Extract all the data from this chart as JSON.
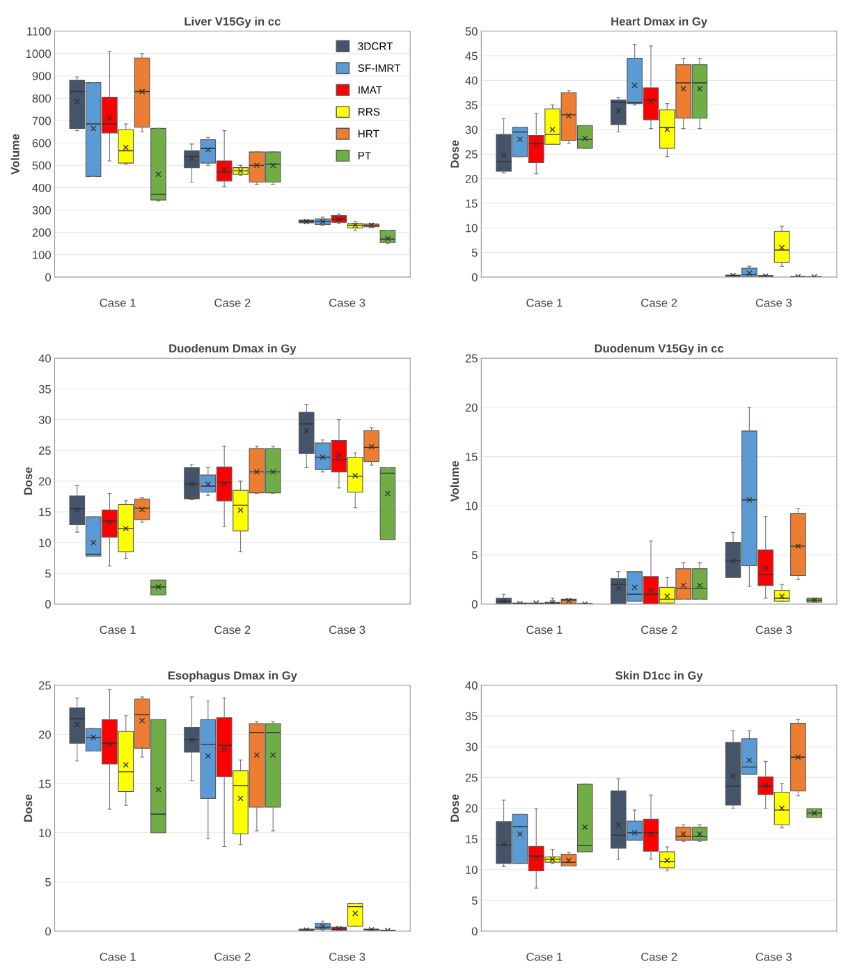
{
  "chart_data": [
    {
      "type": "box",
      "title": "Liver V15Gy in cc",
      "ylabel": "Volume",
      "categories": [
        "Case 1",
        "Case 2",
        "Case 3"
      ],
      "ylim": [
        0,
        1100
      ],
      "yticks": [
        0,
        100,
        200,
        300,
        400,
        500,
        600,
        700,
        800,
        900,
        1000,
        1100
      ],
      "grid": "y",
      "legend": "top right",
      "marker": "cross",
      "series": [
        {
          "name": "3DCRT",
          "color": "#44546a",
          "boxes": [
            {
              "low": 655,
              "q1": 665,
              "median": 830,
              "q3": 880,
              "high": 895,
              "mean": 785
            },
            {
              "low": 425,
              "q1": 490,
              "median": 540,
              "q3": 565,
              "high": 595,
              "mean": 530
            },
            {
              "low": 243,
              "q1": 243,
              "median": 248,
              "q3": 255,
              "high": 255,
              "mean": 248
            }
          ]
        },
        {
          "name": "SF-IMRT",
          "color": "#5b9bd5",
          "boxes": [
            {
              "low": 450,
              "q1": 450,
              "median": 685,
              "q3": 870,
              "high": 870,
              "mean": 665
            },
            {
              "low": 500,
              "q1": 510,
              "median": 575,
              "q3": 615,
              "high": 625,
              "mean": 570
            },
            {
              "low": 232,
              "q1": 235,
              "median": 248,
              "q3": 260,
              "high": 268,
              "mean": 248
            }
          ]
        },
        {
          "name": "IMAT",
          "color": "#ff0000",
          "boxes": [
            {
              "low": 520,
              "q1": 645,
              "median": 685,
              "q3": 805,
              "high": 1010,
              "mean": 710
            },
            {
              "low": 405,
              "q1": 430,
              "median": 470,
              "q3": 520,
              "high": 655,
              "mean": 480
            },
            {
              "low": 240,
              "q1": 245,
              "median": 258,
              "q3": 275,
              "high": 282,
              "mean": 258
            }
          ]
        },
        {
          "name": "RRS",
          "color": "#ffff00",
          "boxes": [
            {
              "low": 505,
              "q1": 510,
              "median": 565,
              "q3": 660,
              "high": 685,
              "mean": 580
            },
            {
              "low": 455,
              "q1": 460,
              "median": 475,
              "q3": 490,
              "high": 500,
              "mean": 475
            },
            {
              "low": 210,
              "q1": 220,
              "median": 232,
              "q3": 240,
              "high": 248,
              "mean": 232
            }
          ]
        },
        {
          "name": "HRT",
          "color": "#ed7d31",
          "boxes": [
            {
              "low": 650,
              "q1": 670,
              "median": 830,
              "q3": 980,
              "high": 1000,
              "mean": 830
            },
            {
              "low": 415,
              "q1": 425,
              "median": 500,
              "q3": 560,
              "high": 560,
              "mean": 500
            },
            {
              "low": 222,
              "q1": 225,
              "median": 232,
              "q3": 238,
              "high": 240,
              "mean": 232
            }
          ]
        },
        {
          "name": "PT",
          "color": "#70ad47",
          "boxes": [
            {
              "low": 340,
              "q1": 345,
              "median": 370,
              "q3": 665,
              "high": 665,
              "mean": 460
            },
            {
              "low": 415,
              "q1": 425,
              "median": 505,
              "q3": 560,
              "high": 560,
              "mean": 500
            },
            {
              "low": 150,
              "q1": 155,
              "median": 170,
              "q3": 210,
              "high": 210,
              "mean": 172
            }
          ]
        }
      ]
    },
    {
      "type": "box",
      "title": "Heart Dmax in Gy",
      "ylabel": "Dose",
      "categories": [
        "Case 1",
        "Case 2",
        "Case 3"
      ],
      "ylim": [
        0,
        50
      ],
      "yticks": [
        0,
        5,
        10,
        15,
        20,
        25,
        30,
        35,
        40,
        45,
        50
      ],
      "grid": "y",
      "marker": "cross",
      "series": [
        {
          "color": "#44546a",
          "boxes": [
            {
              "low": 21.2,
              "q1": 21.5,
              "median": 23.5,
              "q3": 29,
              "high": 32.2,
              "mean": 24.8
            },
            {
              "low": 29.5,
              "q1": 31,
              "median": 35.5,
              "q3": 36,
              "high": 36.5,
              "mean": 33.8
            },
            {
              "low": 0.1,
              "q1": 0.2,
              "median": 0.3,
              "q3": 0.4,
              "high": 0.5,
              "mean": 0.3
            }
          ]
        },
        {
          "color": "#5b9bd5",
          "boxes": [
            {
              "low": 24.5,
              "q1": 24.5,
              "median": 29.5,
              "q3": 30.5,
              "high": 30.5,
              "mean": 28
            },
            {
              "low": 35,
              "q1": 35.3,
              "median": 35.5,
              "q3": 44.5,
              "high": 47.3,
              "mean": 39
            },
            {
              "low": 0.1,
              "q1": 0.2,
              "median": 0.5,
              "q3": 1.8,
              "high": 2.2,
              "mean": 0.8
            }
          ]
        },
        {
          "color": "#ff0000",
          "boxes": [
            {
              "low": 21,
              "q1": 23.3,
              "median": 27.2,
              "q3": 28.8,
              "high": 33.3,
              "mean": 27
            },
            {
              "low": 30.2,
              "q1": 32,
              "median": 36,
              "q3": 38.5,
              "high": 47,
              "mean": 35.8
            },
            {
              "low": 0.05,
              "q1": 0.1,
              "median": 0.2,
              "q3": 0.3,
              "high": 0.4,
              "mean": 0.2
            }
          ]
        },
        {
          "color": "#ffff00",
          "boxes": [
            {
              "low": 27,
              "q1": 27,
              "median": 29,
              "q3": 34.2,
              "high": 35,
              "mean": 30
            },
            {
              "low": 24.5,
              "q1": 26.2,
              "median": 30.4,
              "q3": 34,
              "high": 35.3,
              "mean": 30
            },
            {
              "low": 2.2,
              "q1": 3,
              "median": 5.5,
              "q3": 9.3,
              "high": 10.3,
              "mean": 6
            }
          ]
        },
        {
          "color": "#ed7d31",
          "boxes": [
            {
              "low": 27.2,
              "q1": 27.8,
              "median": 33,
              "q3": 37.5,
              "high": 38,
              "mean": 32.8
            },
            {
              "low": 30.2,
              "q1": 32.3,
              "median": 39.5,
              "q3": 43.2,
              "high": 44.5,
              "mean": 38.3
            },
            {
              "low": 0,
              "q1": 0.05,
              "median": 0.1,
              "q3": 0.15,
              "high": 0.2,
              "mean": 0.1
            }
          ]
        },
        {
          "color": "#70ad47",
          "boxes": [
            {
              "low": 26.2,
              "q1": 26.2,
              "median": 28,
              "q3": 30.8,
              "high": 30.8,
              "mean": 28.2
            },
            {
              "low": 30.2,
              "q1": 32.3,
              "median": 39.5,
              "q3": 43.2,
              "high": 44.5,
              "mean": 38.3
            },
            {
              "low": 0,
              "q1": 0,
              "median": 0.05,
              "q3": 0.1,
              "high": 0.1,
              "mean": 0.05
            }
          ]
        }
      ]
    },
    {
      "type": "box",
      "title": "Duodenum Dmax in Gy",
      "ylabel": "Dose",
      "categories": [
        "Case 1",
        "Case 2",
        "Case 3"
      ],
      "ylim": [
        0,
        40
      ],
      "yticks": [
        0,
        5,
        10,
        15,
        20,
        25,
        30,
        35,
        40
      ],
      "grid": "y",
      "marker": "cross",
      "series": [
        {
          "color": "#44546a",
          "boxes": [
            {
              "low": 11.7,
              "q1": 12.9,
              "median": 15.5,
              "q3": 17.6,
              "high": 19.3,
              "mean": 15.3
            },
            {
              "low": 17,
              "q1": 17.1,
              "median": 19.5,
              "q3": 22.2,
              "high": 22.7,
              "mean": 19.5
            },
            {
              "low": 22.2,
              "q1": 24.5,
              "median": 29.3,
              "q3": 31.2,
              "high": 32.5,
              "mean": 28.2
            }
          ]
        },
        {
          "color": "#5b9bd5",
          "boxes": [
            {
              "low": 7.8,
              "q1": 7.8,
              "median": 8.1,
              "q3": 14.2,
              "high": 14.2,
              "mean": 10
            },
            {
              "low": 17.7,
              "q1": 18.2,
              "median": 19.2,
              "q3": 21,
              "high": 22.2,
              "mean": 19.5
            },
            {
              "low": 21.5,
              "q1": 21.9,
              "median": 23.9,
              "q3": 26.2,
              "high": 26.7,
              "mean": 23.9
            }
          ]
        },
        {
          "color": "#ff0000",
          "boxes": [
            {
              "low": 6.2,
              "q1": 10.9,
              "median": 13.5,
              "q3": 15.3,
              "high": 18,
              "mean": 13.3
            },
            {
              "low": 12.6,
              "q1": 16.8,
              "median": 19.8,
              "q3": 22.3,
              "high": 25.7,
              "mean": 19.6
            },
            {
              "low": 18.9,
              "q1": 21.5,
              "median": 23.5,
              "q3": 26.6,
              "high": 30,
              "mean": 24.2
            }
          ]
        },
        {
          "color": "#ffff00",
          "boxes": [
            {
              "low": 7.4,
              "q1": 8.5,
              "median": 12.3,
              "q3": 16.2,
              "high": 16.8,
              "mean": 12.3
            },
            {
              "low": 8.5,
              "q1": 11.9,
              "median": 16.1,
              "q3": 18.5,
              "high": 20,
              "mean": 15.3
            },
            {
              "low": 15.7,
              "q1": 18.2,
              "median": 20.8,
              "q3": 23.9,
              "high": 24.6,
              "mean": 20.9
            }
          ]
        },
        {
          "color": "#ed7d31",
          "boxes": [
            {
              "low": 13.3,
              "q1": 13.7,
              "median": 15.6,
              "q3": 17.1,
              "high": 17.3,
              "mean": 15.4
            },
            {
              "low": 18,
              "q1": 18.1,
              "median": 21.5,
              "q3": 25.3,
              "high": 25.7,
              "mean": 21.5
            },
            {
              "low": 22.6,
              "q1": 23.2,
              "median": 25.5,
              "q3": 28.2,
              "high": 28.7,
              "mean": 25.6
            }
          ]
        },
        {
          "color": "#70ad47",
          "boxes": [
            {
              "low": 1.5,
              "q1": 1.5,
              "median": 2.8,
              "q3": 3.9,
              "high": 3.9,
              "mean": 2.8
            },
            {
              "low": 18,
              "q1": 18.1,
              "median": 21.5,
              "q3": 25.3,
              "high": 25.7,
              "mean": 21.5
            },
            {
              "low": 10.5,
              "q1": 10.5,
              "median": 21.3,
              "q3": 22.2,
              "high": 22.2,
              "mean": 18
            }
          ]
        }
      ]
    },
    {
      "type": "box",
      "title": "Duodenum V15Gy in cc",
      "ylabel": "Volume",
      "categories": [
        "Case 1",
        "Case 2",
        "Case 3"
      ],
      "ylim": [
        0,
        25
      ],
      "yticks": [
        0,
        5,
        10,
        15,
        20,
        25
      ],
      "grid": "y",
      "marker": "cross",
      "series": [
        {
          "color": "#44546a",
          "boxes": [
            {
              "low": 0,
              "q1": 0,
              "median": 0.3,
              "q3": 0.6,
              "high": 1.0,
              "mean": 0.3
            },
            {
              "low": 0,
              "q1": 0,
              "median": 2.0,
              "q3": 2.6,
              "high": 3.3,
              "mean": 1.6
            },
            {
              "low": 2.7,
              "q1": 2.7,
              "median": 4.4,
              "q3": 6.3,
              "high": 7.3,
              "mean": 4.4
            }
          ]
        },
        {
          "color": "#5b9bd5",
          "boxes": [
            {
              "low": 0,
              "q1": 0,
              "median": 0.05,
              "q3": 0.1,
              "high": 0.1,
              "mean": 0.05
            },
            {
              "low": 0.3,
              "q1": 0.3,
              "median": 1.0,
              "q3": 3.3,
              "high": 3.3,
              "mean": 1.7
            },
            {
              "low": 1.8,
              "q1": 3.9,
              "median": 10.6,
              "q3": 17.6,
              "high": 20,
              "mean": 10.6
            }
          ]
        },
        {
          "color": "#ff0000",
          "boxes": [
            {
              "low": 0,
              "q1": 0,
              "median": 0.05,
              "q3": 0.1,
              "high": 0.1,
              "mean": 0.1
            },
            {
              "low": 0,
              "q1": 0,
              "median": 1.0,
              "q3": 2.8,
              "high": 6.4,
              "mean": 1.4
            },
            {
              "low": 0.6,
              "q1": 1.9,
              "median": 3.0,
              "q3": 5.5,
              "high": 8.9,
              "mean": 3.7
            }
          ]
        },
        {
          "color": "#ffff00",
          "boxes": [
            {
              "low": 0,
              "q1": 0.05,
              "median": 0.1,
              "q3": 0.2,
              "high": 0.6,
              "mean": 0.15
            },
            {
              "low": 0,
              "q1": 0.1,
              "median": 0.5,
              "q3": 1.7,
              "high": 2.7,
              "mean": 0.8
            },
            {
              "low": 0.3,
              "q1": 0.3,
              "median": 0.6,
              "q3": 1.4,
              "high": 2.0,
              "mean": 0.8
            }
          ]
        },
        {
          "color": "#ed7d31",
          "boxes": [
            {
              "low": 0,
              "q1": 0.05,
              "median": 0.4,
              "q3": 0.5,
              "high": 0.5,
              "mean": 0.35
            },
            {
              "low": 0.5,
              "q1": 0.5,
              "median": 1.6,
              "q3": 3.6,
              "high": 4.2,
              "mean": 1.9
            },
            {
              "low": 2.5,
              "q1": 2.9,
              "median": 5.9,
              "q3": 9.2,
              "high": 9.7,
              "mean": 5.9
            }
          ]
        },
        {
          "color": "#70ad47",
          "boxes": [
            {
              "low": 0,
              "q1": 0,
              "median": 0,
              "q3": 0.05,
              "high": 0.05,
              "mean": 0.02
            },
            {
              "low": 0.5,
              "q1": 0.5,
              "median": 1.6,
              "q3": 3.6,
              "high": 4.2,
              "mean": 1.9
            },
            {
              "low": 0.2,
              "q1": 0.2,
              "median": 0.4,
              "q3": 0.6,
              "high": 0.6,
              "mean": 0.4
            }
          ]
        }
      ]
    },
    {
      "type": "box",
      "title": "Esophagus Dmax in Gy",
      "ylabel": "Dose",
      "categories": [
        "Case 1",
        "Case 2",
        "Case 3"
      ],
      "ylim": [
        0,
        25
      ],
      "yticks": [
        0,
        5,
        10,
        15,
        20,
        25
      ],
      "grid": "y",
      "marker": "cross",
      "series": [
        {
          "color": "#44546a",
          "boxes": [
            {
              "low": 17.3,
              "q1": 19.1,
              "median": 21.6,
              "q3": 22.7,
              "high": 23.7,
              "mean": 21
            },
            {
              "low": 15.3,
              "q1": 18.2,
              "median": 19.5,
              "q3": 20.7,
              "high": 23.8,
              "mean": 19.4
            },
            {
              "low": 0,
              "q1": 0.05,
              "median": 0.1,
              "q3": 0.2,
              "high": 0.2,
              "mean": 0.1
            }
          ]
        },
        {
          "color": "#5b9bd5",
          "boxes": [
            {
              "low": 18.3,
              "q1": 18.3,
              "median": 19.7,
              "q3": 20.6,
              "high": 20.6,
              "mean": 19.7
            },
            {
              "low": 9.4,
              "q1": 13.5,
              "median": 19,
              "q3": 21.5,
              "high": 23.4,
              "mean": 17.8
            },
            {
              "low": 0.1,
              "q1": 0.2,
              "median": 0.4,
              "q3": 0.8,
              "high": 1.0,
              "mean": 0.5
            }
          ]
        },
        {
          "color": "#ff0000",
          "boxes": [
            {
              "low": 12.4,
              "q1": 17,
              "median": 19.1,
              "q3": 21.5,
              "high": 24.6,
              "mean": 19
            },
            {
              "low": 8.6,
              "q1": 15.7,
              "median": 18.9,
              "q3": 21.7,
              "high": 23.7,
              "mean": 18.5
            },
            {
              "low": 0.1,
              "q1": 0.1,
              "median": 0.2,
              "q3": 0.4,
              "high": 0.4,
              "mean": 0.25
            }
          ]
        },
        {
          "color": "#ffff00",
          "boxes": [
            {
              "low": 12.8,
              "q1": 14.2,
              "median": 16.2,
              "q3": 20.3,
              "high": 21.9,
              "mean": 16.9
            },
            {
              "low": 8.8,
              "q1": 9.9,
              "median": 14.8,
              "q3": 16.3,
              "high": 17.4,
              "mean": 13.5
            },
            {
              "low": 0.5,
              "q1": 0.5,
              "median": 2.5,
              "q3": 2.8,
              "high": 2.8,
              "mean": 1.8
            }
          ]
        },
        {
          "color": "#ed7d31",
          "boxes": [
            {
              "low": 17.7,
              "q1": 18.6,
              "median": 22,
              "q3": 23.6,
              "high": 23.8,
              "mean": 21.4
            },
            {
              "low": 10.2,
              "q1": 12.6,
              "median": 20.2,
              "q3": 21.1,
              "high": 21.3,
              "mean": 17.9
            },
            {
              "low": 0.05,
              "q1": 0.1,
              "median": 0.15,
              "q3": 0.2,
              "high": 0.25,
              "mean": 0.15
            }
          ]
        },
        {
          "color": "#70ad47",
          "boxes": [
            {
              "low": 10,
              "q1": 10,
              "median": 11.9,
              "q3": 21.5,
              "high": 21.5,
              "mean": 14.4
            },
            {
              "low": 10.2,
              "q1": 12.6,
              "median": 20.2,
              "q3": 21.1,
              "high": 21.3,
              "mean": 17.9
            },
            {
              "low": 0,
              "q1": 0,
              "median": 0.05,
              "q3": 0.1,
              "high": 0.1,
              "mean": 0.05
            }
          ]
        }
      ]
    },
    {
      "type": "box",
      "title": "Skin D1cc in Gy",
      "ylabel": "Dose",
      "categories": [
        "Case 1",
        "Case 2",
        "Case 3"
      ],
      "ylim": [
        0,
        40
      ],
      "yticks": [
        0,
        5,
        10,
        15,
        20,
        25,
        30,
        35,
        40
      ],
      "grid": "y",
      "marker": "cross",
      "series": [
        {
          "color": "#44546a",
          "boxes": [
            {
              "low": 10.5,
              "q1": 11,
              "median": 14,
              "q3": 17.8,
              "high": 21.3,
              "mean": 14.2
            },
            {
              "low": 11.7,
              "q1": 13.5,
              "median": 15.6,
              "q3": 22.8,
              "high": 24.8,
              "mean": 17.3
            },
            {
              "low": 20,
              "q1": 20.5,
              "median": 23.6,
              "q3": 30.7,
              "high": 32.6,
              "mean": 25.2
            }
          ]
        },
        {
          "color": "#5b9bd5",
          "boxes": [
            {
              "low": 11,
              "q1": 11,
              "median": 17,
              "q3": 19,
              "high": 19,
              "mean": 15.8
            },
            {
              "low": 14.8,
              "q1": 14.8,
              "median": 16,
              "q3": 17.9,
              "high": 19.7,
              "mean": 16
            },
            {
              "low": 25.5,
              "q1": 25.5,
              "median": 26.7,
              "q3": 31.3,
              "high": 32.6,
              "mean": 27.8
            }
          ]
        },
        {
          "color": "#ff0000",
          "boxes": [
            {
              "low": 7,
              "q1": 9.8,
              "median": 12.2,
              "q3": 13.8,
              "high": 19.9,
              "mean": 12
            },
            {
              "low": 11.7,
              "q1": 13,
              "median": 16,
              "q3": 18.2,
              "high": 22.1,
              "mean": 15.8
            },
            {
              "low": 20,
              "q1": 22.2,
              "median": 23.6,
              "q3": 25.1,
              "high": 27.6,
              "mean": 23.6
            }
          ]
        },
        {
          "color": "#ffff00",
          "boxes": [
            {
              "low": 11,
              "q1": 11.2,
              "median": 11.7,
              "q3": 12.1,
              "high": 13.3,
              "mean": 11.7
            },
            {
              "low": 9.8,
              "q1": 10.3,
              "median": 11.3,
              "q3": 12.9,
              "high": 13.7,
              "mean": 11.5
            },
            {
              "low": 16.8,
              "q1": 17.3,
              "median": 19.7,
              "q3": 22.6,
              "high": 24,
              "mean": 20
            }
          ]
        },
        {
          "color": "#ed7d31",
          "boxes": [
            {
              "low": 10.6,
              "q1": 10.6,
              "median": 11.2,
              "q3": 12.5,
              "high": 12.8,
              "mean": 11.5
            },
            {
              "low": 14.6,
              "q1": 14.8,
              "median": 15.4,
              "q3": 16.9,
              "high": 17.3,
              "mean": 15.8
            },
            {
              "low": 22,
              "q1": 22.8,
              "median": 28.3,
              "q3": 33.8,
              "high": 34.4,
              "mean": 28.3
            }
          ]
        },
        {
          "color": "#70ad47",
          "boxes": [
            {
              "low": 12.9,
              "q1": 12.9,
              "median": 13.9,
              "q3": 23.9,
              "high": 23.9,
              "mean": 16.9
            },
            {
              "low": 14.6,
              "q1": 14.8,
              "median": 15.4,
              "q3": 16.9,
              "high": 17.3,
              "mean": 15.8
            },
            {
              "low": 18.5,
              "q1": 18.5,
              "median": 19.2,
              "q3": 19.9,
              "high": 19.9,
              "mean": 19.2
            }
          ]
        }
      ]
    }
  ]
}
